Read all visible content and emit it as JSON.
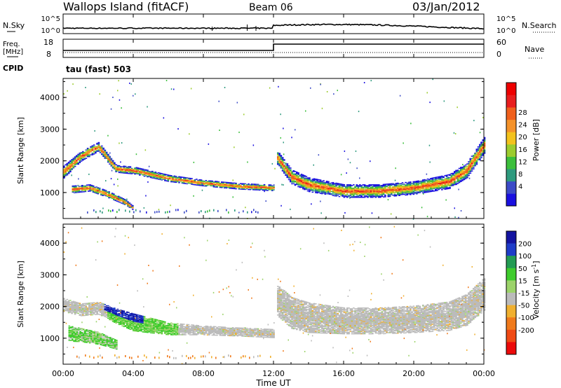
{
  "header": {
    "station": "Wallops Island (fitACF)",
    "beam": "Beam 06",
    "date": "03/Jan/2012"
  },
  "noise_panel": {
    "left_label": "N.Sky",
    "right_label": "N.Search",
    "tick_top": "10^5",
    "tick_bottom": "10^0"
  },
  "freq_panel": {
    "left_label_1": "Freq.",
    "left_label_2": "[MHz]",
    "left_tick_top": "18",
    "left_tick_bottom": "8",
    "right_label": "Nave",
    "right_tick_top": "60",
    "right_tick_bottom": "0",
    "cpid_label": "CPID",
    "cpid_value": "tau (fast) 503"
  },
  "time_axis": {
    "label": "Time UT",
    "ticks": [
      "00:00",
      "04:00",
      "08:00",
      "12:00",
      "16:00",
      "20:00",
      "00:00"
    ]
  },
  "colors": {
    "power_scale": [
      "#1a10e0",
      "#3c4bc7",
      "#2e9a7e",
      "#3cbf3c",
      "#9ccc2e",
      "#f3c21c",
      "#f4922a",
      "#f0601c",
      "#e81e1e",
      "#ee0000"
    ],
    "velocity_scale": [
      "#1313a0",
      "#1e3cc8",
      "#239b53",
      "#3fcc2d",
      "#9cd36a",
      "#bbbbbb",
      "#f0b030",
      "#f07a1c",
      "#f04a14",
      "#ec0a0a"
    ]
  },
  "chart_data": [
    {
      "type": "heatmap",
      "name": "power",
      "ylabel": "Slant Range [km]",
      "xlabel": "",
      "y_ticks": [
        "1000",
        "2000",
        "3000",
        "4000"
      ],
      "ylim": [
        180,
        4600
      ],
      "xlim": [
        0,
        24
      ],
      "colorbar_label": "Power [dB]",
      "colorbar_ticks": [
        "4",
        "8",
        "12",
        "16",
        "20",
        "24",
        "28"
      ],
      "bands": [
        {
          "x": [
            0.0,
            1.0,
            2.0,
            3.0,
            4.0,
            6.0,
            8.0,
            10.0,
            12.0
          ],
          "y_center": [
            1650,
            2150,
            2450,
            1750,
            1700,
            1450,
            1300,
            1200,
            1150
          ],
          "y_halfwidth": [
            200,
            160,
            150,
            120,
            120,
            110,
            100,
            100,
            100
          ]
        },
        {
          "x": [
            0.5,
            1.5,
            2.5,
            3.5,
            4.0
          ],
          "y_center": [
            1100,
            1150,
            950,
            700,
            500
          ],
          "y_halfwidth": [
            120,
            110,
            110,
            90,
            70
          ]
        },
        {
          "x": [
            12.2,
            13.0,
            14.0,
            16.0,
            18.0,
            20.0,
            22.0,
            23.0,
            24.0
          ],
          "y_center": [
            2100,
            1500,
            1250,
            1050,
            1050,
            1150,
            1350,
            1700,
            2500
          ],
          "y_halfwidth": [
            220,
            230,
            230,
            210,
            210,
            210,
            230,
            240,
            260
          ]
        }
      ]
    },
    {
      "type": "heatmap",
      "name": "velocity",
      "ylabel": "Slant Range [km]",
      "xlabel": "Time UT",
      "y_ticks": [
        "1000",
        "2000",
        "3000",
        "4000"
      ],
      "ylim": [
        180,
        4600
      ],
      "xlim": [
        0,
        24
      ],
      "colorbar_label": "Velocity [m s^-1]",
      "colorbar_ticks": [
        "200",
        "100",
        "50",
        "15",
        "-15",
        "-50",
        "-100",
        "-200"
      ],
      "bands": [
        {
          "x": [
            0.0,
            1.0,
            2.0,
            3.0,
            4.0,
            6.0,
            8.0,
            10.0,
            12.0
          ],
          "y_center": [
            2050,
            1900,
            1950,
            1700,
            1500,
            1300,
            1250,
            1200,
            1150
          ],
          "y_halfwidth": [
            220,
            200,
            200,
            240,
            280,
            200,
            150,
            140,
            140
          ]
        },
        {
          "x": [
            0.3,
            1.0,
            2.0,
            3.0
          ],
          "y_center": [
            1150,
            1100,
            1000,
            800
          ],
          "y_halfwidth": [
            250,
            220,
            200,
            150
          ]
        },
        {
          "x": [
            12.2,
            13.0,
            14.0,
            16.0,
            18.0,
            20.0,
            22.0,
            23.0,
            24.0
          ],
          "y_center": [
            2200,
            1800,
            1650,
            1550,
            1550,
            1600,
            1700,
            1900,
            2400
          ],
          "y_halfwidth": [
            500,
            500,
            480,
            420,
            420,
            430,
            460,
            500,
            520
          ]
        }
      ]
    }
  ]
}
